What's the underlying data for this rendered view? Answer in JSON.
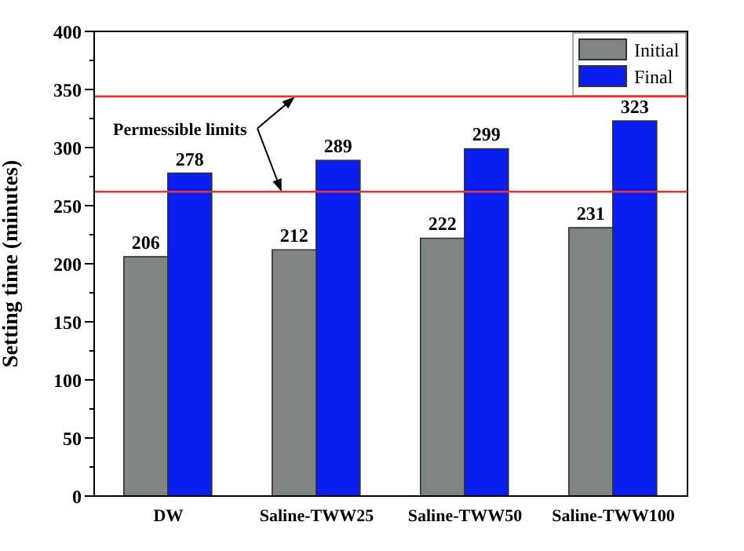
{
  "chart_data": {
    "type": "bar",
    "ylabel": "Setting time (minutes)",
    "categories": [
      "DW",
      "Saline-TWW25",
      "Saline-TWW50",
      "Saline-TWW100"
    ],
    "series": [
      {
        "name": "Initial",
        "color": "#7f8580",
        "values": [
          206,
          212,
          222,
          231
        ]
      },
      {
        "name": "Final",
        "color": "#0a1ef0",
        "values": [
          278,
          289,
          299,
          323
        ]
      }
    ],
    "ylim": [
      0,
      400
    ],
    "yticks": [
      0,
      50,
      100,
      150,
      200,
      250,
      300,
      350,
      400
    ],
    "ref_lines": [
      {
        "axis": "y",
        "value": 344,
        "color": "#e8322f"
      },
      {
        "axis": "y",
        "value": 262,
        "color": "#e8322f"
      }
    ],
    "annotations": [
      {
        "text": "Permessible limits",
        "y": 344
      }
    ],
    "data_labels": true,
    "legend": "top right",
    "grid": false
  }
}
